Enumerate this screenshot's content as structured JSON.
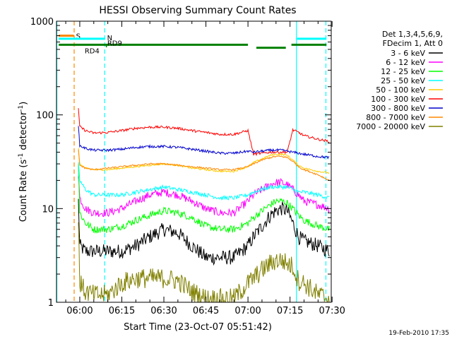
{
  "chart_data": {
    "type": "line",
    "title": "HESSI Observing Summary Count Rates",
    "xlabel": "Start Time (23-Oct-07 05:51:42)",
    "ylabel_main": "Count Rate (s",
    "ylabel_sup": "-1",
    "ylabel_mid": " detector",
    "ylabel_sup2": "-1",
    "ylabel_end": ")",
    "yscale": "log",
    "ylim": [
      1,
      1000
    ],
    "xlim_minutes": [
      -8.3,
      89.7
    ],
    "x_unit": "minutes after 06:00",
    "x_ticks": [
      {
        "m": 0,
        "label": "06:00"
      },
      {
        "m": 15,
        "label": "06:15"
      },
      {
        "m": 30,
        "label": "06:30"
      },
      {
        "m": 45,
        "label": "06:45"
      },
      {
        "m": 60,
        "label": "07:00"
      },
      {
        "m": 75,
        "label": "07:15"
      },
      {
        "m": 90,
        "label": "07:30"
      }
    ],
    "y_ticks": [
      {
        "v": 1,
        "label": "1"
      },
      {
        "v": 10,
        "label": "10"
      },
      {
        "v": 100,
        "label": "100"
      },
      {
        "v": 1000,
        "label": "1000"
      }
    ],
    "legend_header": [
      "Det 1,3,4,5,6,9,",
      "FDecim 1, Att 0"
    ],
    "series": [
      {
        "name": "3 - 6 keV",
        "color": "#000000",
        "x": [
          -0.5,
          0,
          2,
          5,
          10,
          15,
          20,
          25,
          30,
          35,
          40,
          45,
          50,
          55,
          60,
          62,
          65,
          68,
          70,
          72,
          74,
          76,
          78,
          80,
          85,
          89
        ],
        "y": [
          12,
          4,
          3.5,
          3.5,
          3.5,
          3.5,
          4,
          5,
          6,
          5.5,
          4,
          3,
          3,
          3,
          4,
          5,
          6.5,
          8.5,
          9.5,
          10,
          9.5,
          7,
          5,
          4.5,
          4,
          3.5
        ],
        "noise": 0.18
      },
      {
        "name": "6 - 12 keV",
        "color": "#ff00ff",
        "x": [
          -0.5,
          0,
          2,
          5,
          10,
          15,
          20,
          25,
          30,
          35,
          40,
          45,
          50,
          55,
          60,
          62,
          65,
          68,
          70,
          72,
          74,
          76,
          78,
          80,
          85,
          89
        ],
        "y": [
          24,
          13,
          10,
          9,
          9,
          10,
          12,
          14,
          15,
          14,
          12,
          10,
          9,
          9,
          12,
          14,
          16,
          18,
          19,
          19,
          18,
          16,
          14,
          12,
          11,
          10
        ],
        "noise": 0.1
      },
      {
        "name": "12 - 25 keV",
        "color": "#00ff00",
        "x": [
          -0.5,
          0,
          2,
          5,
          10,
          15,
          20,
          25,
          30,
          35,
          40,
          45,
          50,
          55,
          60,
          62,
          65,
          68,
          70,
          72,
          74,
          76,
          78,
          80,
          85,
          89
        ],
        "y": [
          30,
          9,
          7,
          6,
          6,
          6.5,
          7.5,
          8.5,
          9.5,
          9,
          8,
          6.5,
          6,
          6,
          7,
          8,
          9.5,
          11,
          12,
          12,
          11.5,
          10,
          8.5,
          7.5,
          6.5,
          6
        ],
        "noise": 0.09
      },
      {
        "name": "25 - 50 keV",
        "color": "#00ffff",
        "x": [
          -0.5,
          0,
          2,
          5,
          10,
          15,
          20,
          25,
          30,
          35,
          40,
          45,
          50,
          55,
          60,
          62,
          65,
          68,
          70,
          72,
          74,
          76,
          78,
          80,
          85,
          89
        ],
        "y": [
          30,
          20,
          16,
          14,
          14,
          14,
          15,
          16,
          17,
          16,
          15,
          14,
          13,
          13,
          14,
          15,
          16,
          17,
          17,
          17,
          17,
          16,
          15,
          15,
          14,
          13
        ],
        "noise": 0.05
      },
      {
        "name": "50 - 100 keV",
        "color": "#ffcc00",
        "x": [
          -0.5,
          0,
          2,
          5,
          10,
          15,
          20,
          25,
          30,
          35,
          40,
          45,
          50,
          55,
          60,
          62,
          65,
          68,
          70,
          72,
          74,
          76,
          78,
          80,
          85,
          89
        ],
        "y": [
          45,
          30,
          27,
          26,
          26,
          27,
          28,
          29,
          30,
          29,
          27,
          26,
          25,
          25,
          28,
          31,
          34,
          37,
          38,
          38,
          37,
          33,
          29,
          27,
          25,
          24
        ],
        "noise": 0.02
      },
      {
        "name": "100 - 300 keV",
        "color": "#ff0000",
        "x": [
          -0.5,
          0,
          2,
          5,
          10,
          15,
          20,
          25,
          30,
          35,
          40,
          45,
          50,
          55,
          60,
          62,
          65,
          68,
          70,
          72,
          74,
          76,
          78,
          80,
          85,
          89
        ],
        "y": [
          115,
          75,
          68,
          64,
          65,
          68,
          72,
          74,
          74,
          72,
          68,
          65,
          62,
          62,
          68,
          38,
          39,
          40,
          40,
          40,
          40,
          69,
          65,
          60,
          55,
          52
        ],
        "noise": 0.03
      },
      {
        "name": "300 - 800 keV",
        "color": "#0000cc",
        "x": [
          -0.5,
          0,
          2,
          5,
          10,
          15,
          20,
          25,
          30,
          35,
          40,
          45,
          50,
          55,
          60,
          62,
          65,
          68,
          70,
          72,
          74,
          76,
          78,
          80,
          85,
          89
        ],
        "y": [
          75,
          47,
          44,
          42,
          42,
          43,
          45,
          46,
          46,
          45,
          43,
          41,
          39,
          39,
          41,
          40,
          41,
          42,
          42,
          42,
          41,
          40,
          39,
          38,
          36,
          35
        ],
        "noise": 0.03
      },
      {
        "name": "800 - 7000 keV",
        "color": "#ff8800",
        "x": [
          -0.5,
          0,
          2,
          5,
          10,
          15,
          20,
          25,
          30,
          35,
          40,
          45,
          50,
          55,
          60,
          62,
          65,
          68,
          70,
          72,
          74,
          76,
          78,
          80,
          85,
          89
        ],
        "y": [
          42,
          29,
          27,
          26,
          27,
          28,
          29,
          30,
          30,
          29,
          28,
          27,
          26,
          26,
          28,
          30,
          33,
          35,
          36,
          36,
          35,
          32,
          28,
          26,
          23,
          20
        ],
        "noise": 0.02
      },
      {
        "name": "7000 - 20000 keV",
        "color": "#808000",
        "x": [
          -0.5,
          0,
          2,
          5,
          10,
          15,
          20,
          25,
          30,
          35,
          40,
          45,
          50,
          55,
          60,
          62,
          65,
          68,
          70,
          72,
          74,
          76,
          78,
          80,
          85,
          89
        ],
        "y": [
          9,
          1.6,
          1.3,
          1.2,
          1.2,
          1.6,
          1.8,
          1.8,
          1.8,
          1.7,
          1.3,
          1.1,
          1.1,
          1.1,
          1.6,
          1.8,
          2.2,
          2.6,
          2.8,
          2.8,
          2.6,
          2.4,
          1.7,
          1.6,
          1.2,
          1.1
        ],
        "noise": 0.25
      }
    ],
    "vertical_lines": [
      {
        "m": -8.2,
        "color": "#00ffff",
        "dash": false
      },
      {
        "m": -2.0,
        "color": "#ff8800",
        "dash": true
      },
      {
        "m": 8.9,
        "color": "#00ffff",
        "dash": true
      },
      {
        "m": 77.3,
        "color": "#00ffff",
        "dash": false
      },
      {
        "m": 87.8,
        "color": "#00ffff",
        "dash": true
      }
    ],
    "flag_bars": [
      {
        "label": "S",
        "color": "#ff8800",
        "x0": -7.5,
        "x1": -2.1,
        "y": 700
      },
      {
        "label": "N",
        "color": "#00ffff",
        "x0": -7.5,
        "x1": 9.0,
        "y": 650
      },
      {
        "label": "",
        "color": "#00ffff",
        "x0": 77.5,
        "x1": 88.0,
        "y": 650
      },
      {
        "label": "RD9",
        "color": "#008000",
        "x0": -7.5,
        "x1": 60.0,
        "y": 560
      },
      {
        "label": "",
        "color": "#008000",
        "x0": 63.0,
        "x1": 73.5,
        "y": 520
      },
      {
        "label": "",
        "color": "#008000",
        "x0": 75.5,
        "x1": 88.0,
        "y": 560
      },
      {
        "label": "RD4",
        "color": "#008000",
        "x0": 9.3,
        "x1": 9.7,
        "y": 540
      }
    ],
    "timestamp": "19-Feb-2010 17:35"
  }
}
